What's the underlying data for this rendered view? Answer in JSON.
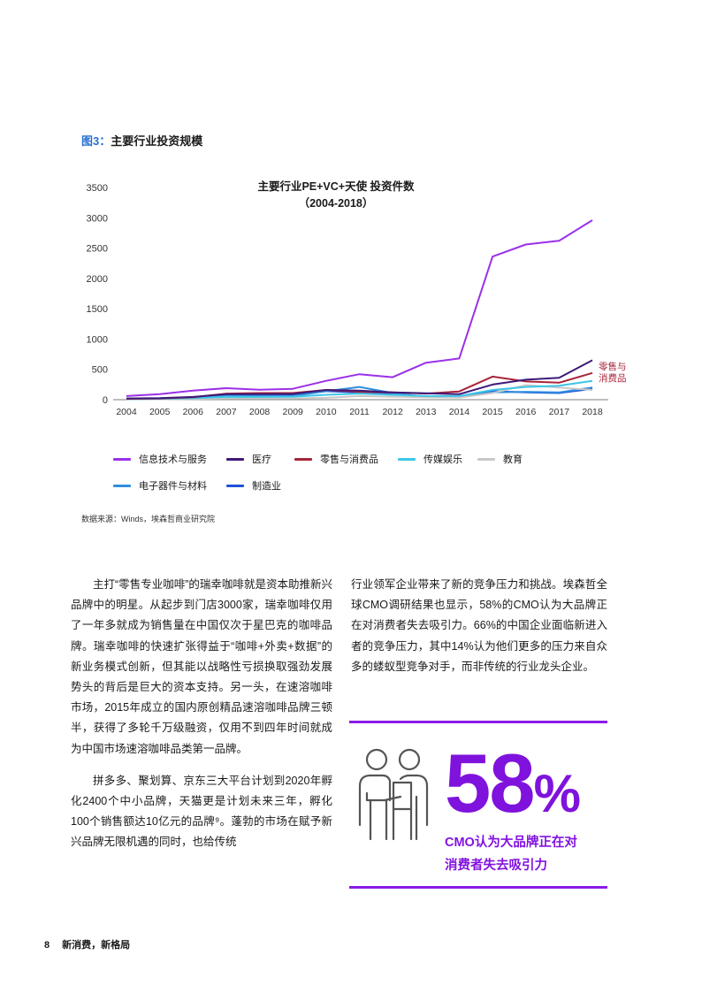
{
  "figure": {
    "number": "图3：",
    "title": "主要行业投资规模"
  },
  "chart_data": {
    "type": "line",
    "title": "主要行业PE+VC+天使 投资件数",
    "subtitle": "（2004-2018）",
    "xlabel": "",
    "ylabel": "",
    "ylim": [
      0,
      3500
    ],
    "yticks": [
      "0",
      "500",
      "1000",
      "1500",
      "2000",
      "2500",
      "3000",
      "3500"
    ],
    "x": [
      "2004",
      "2005",
      "2006",
      "2007",
      "2008",
      "2009",
      "2010",
      "2011",
      "2012",
      "2013",
      "2014",
      "2015",
      "2016",
      "2017",
      "2018"
    ],
    "grid": false,
    "legend_position": "bottom",
    "annotation": {
      "text_line1": "零售与",
      "text_line2": "消费品",
      "series": "零售与消费品"
    },
    "series": [
      {
        "name": "信息技术与服务",
        "color": "#9b30e8",
        "values": [
          60,
          90,
          150,
          190,
          165,
          180,
          310,
          420,
          370,
          610,
          680,
          2360,
          2560,
          2620,
          2960
        ]
      },
      {
        "name": "医疗",
        "color": "#3d1a78",
        "values": [
          20,
          25,
          45,
          90,
          90,
          95,
          160,
          150,
          120,
          105,
          90,
          250,
          330,
          360,
          650
        ]
      },
      {
        "name": "零售与消费品",
        "color": "#a8253a",
        "values": [
          15,
          20,
          40,
          100,
          110,
          110,
          160,
          130,
          120,
          100,
          135,
          380,
          300,
          280,
          440
        ]
      },
      {
        "name": "传媒娱乐",
        "color": "#3ec6e8",
        "values": [
          10,
          15,
          25,
          45,
          45,
          50,
          80,
          100,
          80,
          60,
          60,
          160,
          210,
          230,
          310
        ]
      },
      {
        "name": "教育",
        "color": "#c8c8c8",
        "values": [
          5,
          8,
          10,
          20,
          20,
          20,
          30,
          60,
          50,
          40,
          35,
          110,
          240,
          200,
          160
        ]
      },
      {
        "name": "电子器件与材料",
        "color": "#2f8fe0",
        "values": [
          10,
          12,
          25,
          65,
          65,
          60,
          140,
          210,
          110,
          50,
          50,
          120,
          130,
          120,
          200
        ]
      },
      {
        "name": "制造业",
        "color": "#1f52d6",
        "values": [
          10,
          15,
          30,
          60,
          65,
          70,
          140,
          120,
          100,
          50,
          45,
          140,
          120,
          110,
          180
        ]
      }
    ]
  },
  "source": "数据来源：Winds，埃森哲商业研究院",
  "body": {
    "left": [
      "主打“零售专业咖啡”的瑞幸咖啡就是资本助推新兴品牌中的明星。从起步到门店3000家，瑞幸咖啡仅用了一年多就成为销售量在中国仅次于星巴克的咖啡品牌。瑞幸咖啡的快速扩张得益于“咖啡+外卖+数据”的新业务模式创新，但其能以战略性亏损换取强劲发展势头的背后是巨大的资本支持。另一头，在速溶咖啡市场，2015年成立的国内原创精品速溶咖啡品牌三顿半，获得了多轮千万级融资，仅用不到四年时间就成为中国市场速溶咖啡品类第一品牌。",
      "拼多多、聚划算、京东三大平台计划到2020年孵化2400个中小品牌，天猫更是计划未来三年，孵化100个销售额达10亿元的品牌⁹。蓬勃的市场在赋予新兴品牌无限机遇的同时，也给传统"
    ],
    "right": "行业领军企业带来了新的竞争压力和挑战。埃森哲全球CMO调研结果也显示，58%的CMO认为大品牌正在对消费者失去吸引力。66%的中国企业面临新进入者的竞争压力，其中14%认为他们更多的压力来自众多的蝼蚁型竞争对手，而非传统的行业龙头企业。"
  },
  "callout": {
    "number": "58",
    "percent": "%",
    "line1": "CMO认为大品牌正在对",
    "line2": "消费者失去吸引力",
    "icon": "people-presentation-icon",
    "accent": "#8a1be6"
  },
  "footer": {
    "page": "8",
    "title": "新消费，新格局"
  }
}
